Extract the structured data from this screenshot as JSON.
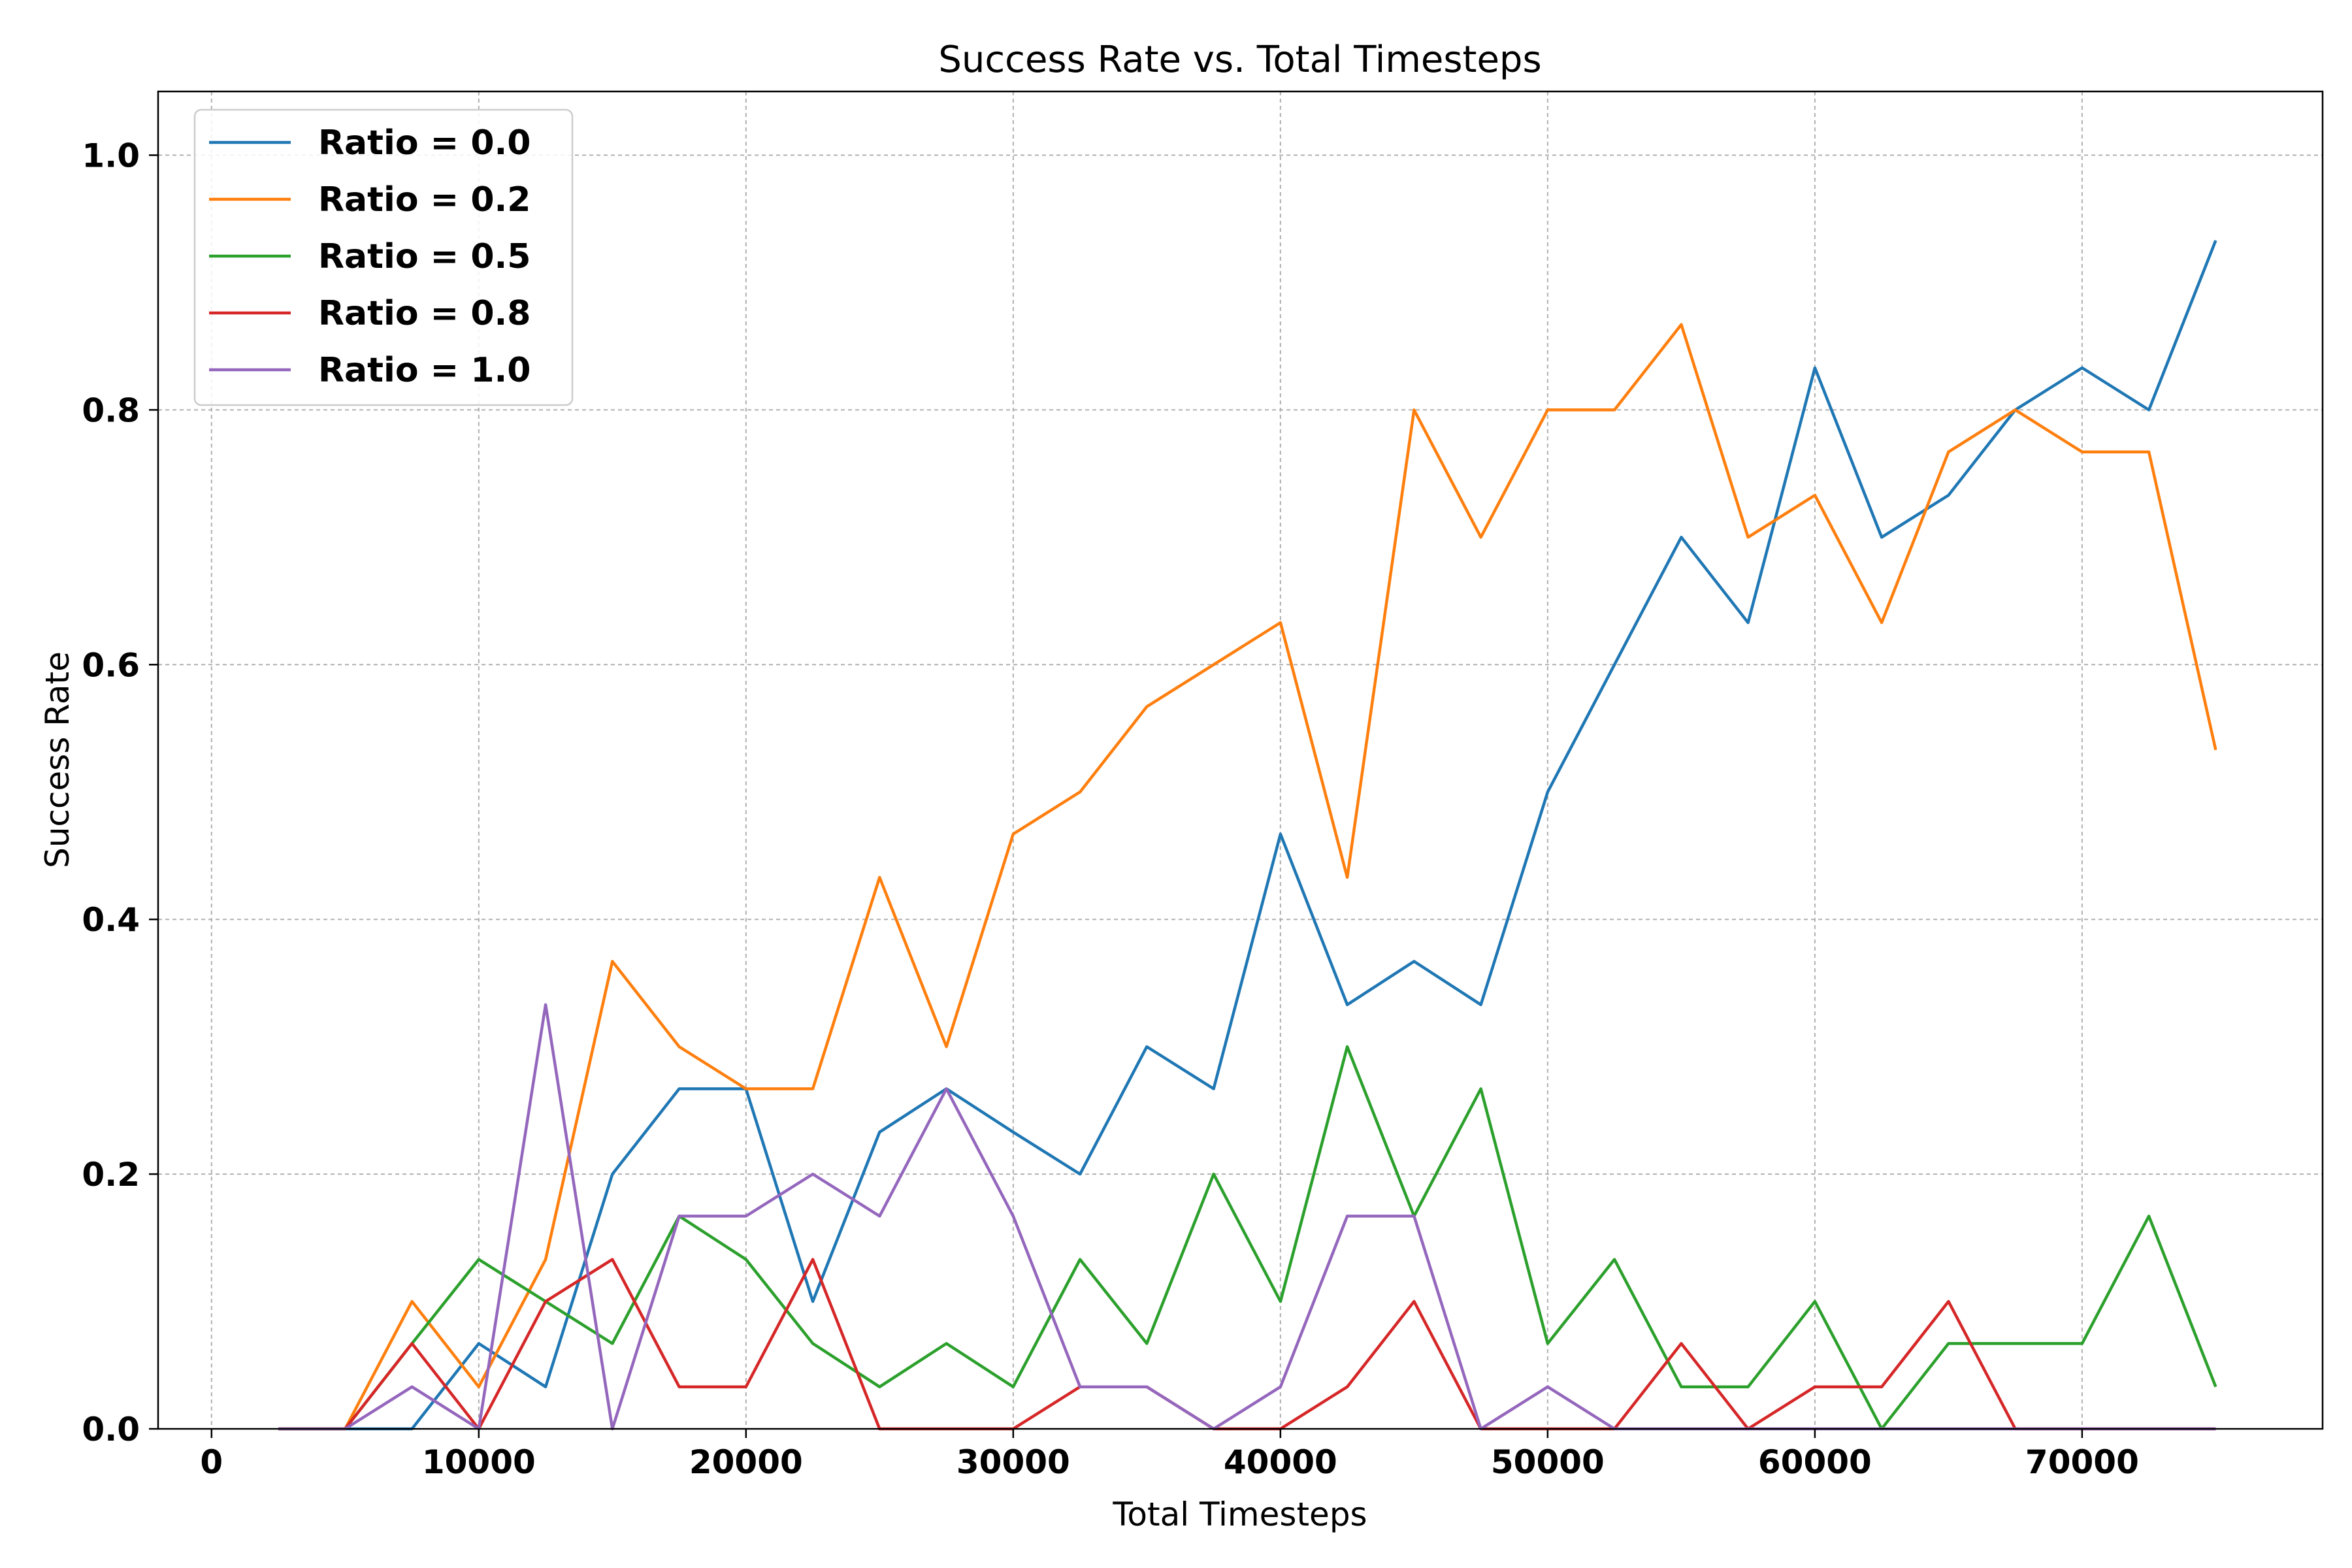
{
  "chart_data": {
    "type": "line",
    "title": "Success Rate vs. Total Timesteps",
    "xlabel": "Total Timesteps",
    "ylabel": "Success Rate",
    "xlim": [
      -2000,
      79000
    ],
    "ylim": [
      0.0,
      1.05
    ],
    "xticks": [
      0,
      10000,
      20000,
      30000,
      40000,
      50000,
      60000,
      70000
    ],
    "xtick_labels": [
      "0",
      "10000",
      "20000",
      "30000",
      "40000",
      "50000",
      "60000",
      "70000"
    ],
    "yticks": [
      0.0,
      0.2,
      0.4,
      0.6,
      0.8,
      1.0
    ],
    "ytick_labels": [
      "0.0",
      "0.2",
      "0.4",
      "0.6",
      "0.8",
      "1.0"
    ],
    "grid": true,
    "legend_position": "top-left",
    "x": [
      2500,
      5000,
      7500,
      10000,
      12500,
      15000,
      17500,
      20000,
      22500,
      25000,
      27500,
      30000,
      32500,
      35000,
      37500,
      40000,
      42500,
      45000,
      47500,
      50000,
      52500,
      55000,
      57500,
      60000,
      62500,
      65000,
      67500,
      70000,
      72500,
      75000
    ],
    "series": [
      {
        "name": "Ratio = 0.0",
        "color": "#1f77b4",
        "values": [
          0.0,
          0.0,
          0.0,
          0.067,
          0.033,
          0.2,
          0.267,
          0.267,
          0.1,
          0.233,
          0.267,
          0.233,
          0.2,
          0.3,
          0.267,
          0.467,
          0.333,
          0.367,
          0.333,
          0.5,
          0.6,
          0.7,
          0.633,
          0.833,
          0.7,
          0.733,
          0.8,
          0.833,
          0.8,
          0.933
        ]
      },
      {
        "name": "Ratio = 0.2",
        "color": "#ff7f0e",
        "values": [
          0.0,
          0.0,
          0.1,
          0.033,
          0.133,
          0.367,
          0.3,
          0.267,
          0.267,
          0.433,
          0.3,
          0.467,
          0.5,
          0.567,
          0.6,
          0.633,
          0.433,
          0.8,
          0.7,
          0.8,
          0.8,
          0.867,
          0.7,
          0.733,
          0.633,
          0.767,
          0.8,
          0.767,
          0.767,
          0.533
        ]
      },
      {
        "name": "Ratio = 0.5",
        "color": "#2ca02c",
        "values": [
          0.0,
          0.0,
          0.067,
          0.133,
          0.1,
          0.067,
          0.167,
          0.133,
          0.067,
          0.033,
          0.067,
          0.033,
          0.133,
          0.067,
          0.2,
          0.1,
          0.3,
          0.167,
          0.267,
          0.067,
          0.133,
          0.033,
          0.033,
          0.1,
          0.0,
          0.067,
          0.067,
          0.067,
          0.167,
          0.033
        ]
      },
      {
        "name": "Ratio = 0.8",
        "color": "#d62728",
        "values": [
          0.0,
          0.0,
          0.067,
          0.0,
          0.1,
          0.133,
          0.033,
          0.033,
          0.133,
          0.0,
          0.0,
          0.0,
          0.033,
          0.033,
          0.0,
          0.0,
          0.033,
          0.1,
          0.0,
          0.0,
          0.0,
          0.067,
          0.0,
          0.033,
          0.033,
          0.1,
          0.0,
          0.0,
          0.0,
          0.0
        ]
      },
      {
        "name": "Ratio = 1.0",
        "color": "#9467bd",
        "values": [
          0.0,
          0.0,
          0.033,
          0.0,
          0.333,
          0.0,
          0.167,
          0.167,
          0.2,
          0.167,
          0.267,
          0.167,
          0.033,
          0.033,
          0.0,
          0.033,
          0.167,
          0.167,
          0.0,
          0.033,
          0.0,
          0.0,
          0.0,
          0.0,
          0.0,
          0.0,
          0.0,
          0.0,
          0.0,
          0.0
        ]
      }
    ]
  }
}
